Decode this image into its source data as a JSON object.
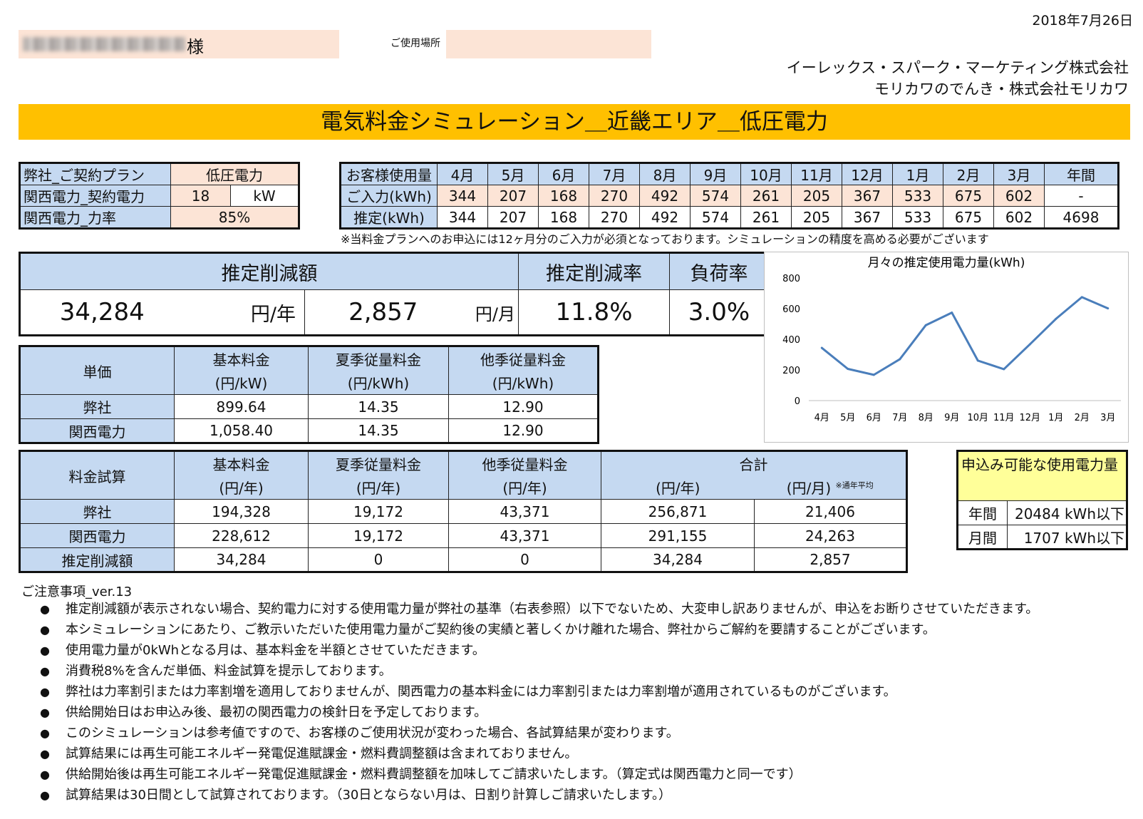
{
  "header": {
    "date": "2018年7月26日",
    "customer_suffix": "様",
    "place_label": "ご使用場所",
    "company_line1": "イーレックス・スパーク・マーケティング株式会社",
    "company_line2": "モリカワのでんき・株式会社モリカワ",
    "title": "電気料金シミュレーション＿近畿エリア＿低圧電力"
  },
  "plan": {
    "row1_label": "弊社_ご契約プラン",
    "row1_value": "低圧電力",
    "row2_label": "関西電力_契約電力",
    "row2_value": "18",
    "row2_unit": "kW",
    "row3_label": "関西電力_力率",
    "row3_value": "85%"
  },
  "usage": {
    "header_label": "お客様使用量",
    "months": [
      "4月",
      "5月",
      "6月",
      "7月",
      "8月",
      "9月",
      "10月",
      "11月",
      "12月",
      "1月",
      "2月",
      "3月"
    ],
    "annual_label": "年間",
    "input_label": "ご入力(kWh)",
    "input": [
      "344",
      "207",
      "168",
      "270",
      "492",
      "574",
      "261",
      "205",
      "367",
      "533",
      "675",
      "602"
    ],
    "input_annual": "-",
    "est_label": "推定(kWh)",
    "est": [
      "344",
      "207",
      "168",
      "270",
      "492",
      "574",
      "261",
      "205",
      "367",
      "533",
      "675",
      "602"
    ],
    "est_annual": "4698",
    "note": "※当料金プランへのお申込には12ヶ月分のご入力が必須となっております。シミュレーションの精度を高める必要がございます"
  },
  "savings": {
    "amount_label": "推定削減額",
    "rate_label": "推定削減率",
    "load_label": "負荷率",
    "yearly": "34,284",
    "yearly_unit": "円/年",
    "monthly": "2,857",
    "monthly_unit": "円/月",
    "rate": "11.8%",
    "load": "3.0%"
  },
  "unit_price": {
    "label": "単価",
    "h1a": "基本料金",
    "h1b": "(円/kW)",
    "h2a": "夏季従量料金",
    "h2b": "(円/kWh)",
    "h3a": "他季従量料金",
    "h3b": "(円/kWh)",
    "row1": {
      "name": "弊社",
      "v1": "899.64",
      "v2": "14.35",
      "v3": "12.90"
    },
    "row2": {
      "name": "関西電力",
      "v1": "1,058.40",
      "v2": "14.35",
      "v3": "12.90"
    }
  },
  "calc": {
    "label": "料金試算",
    "h1a": "基本料金",
    "h1b": "(円/年)",
    "h2a": "夏季従量料金",
    "h2b": "(円/年)",
    "h3a": "他季従量料金",
    "h3b": "(円/年)",
    "total": "合計",
    "total_year": "(円/年)",
    "total_month": "(円/月)",
    "total_note": "※通年平均",
    "row1": {
      "name": "弊社",
      "v1": "194,328",
      "v2": "19,172",
      "v3": "43,371",
      "v4": "256,871",
      "v5": "21,406"
    },
    "row2": {
      "name": "関西電力",
      "v1": "228,612",
      "v2": "19,172",
      "v3": "43,371",
      "v4": "291,155",
      "v5": "24,263"
    },
    "row3": {
      "name": "推定削減額",
      "v1": "34,284",
      "v2": "0",
      "v3": "0",
      "v4": "34,284",
      "v5": "2,857"
    }
  },
  "limit": {
    "title": "申込み可能な使用電力量",
    "row1_label": "年間",
    "row1_value": "20484 kWh以下",
    "row2_label": "月間",
    "row2_value": "1707 kWh以下"
  },
  "chart_data": {
    "type": "line",
    "title": "月々の推定使用電力量(kWh)",
    "categories": [
      "4月",
      "5月",
      "6月",
      "7月",
      "8月",
      "9月",
      "10月",
      "11月",
      "12月",
      "1月",
      "2月",
      "3月"
    ],
    "values": [
      344,
      207,
      168,
      270,
      492,
      574,
      261,
      205,
      367,
      533,
      675,
      602
    ],
    "ylim": [
      0,
      800
    ],
    "yticks": [
      "0",
      "200",
      "400",
      "600",
      "800"
    ],
    "color": "#4a7ebb",
    "grid": false
  },
  "notes": {
    "heading": "ご注意事項_ver.13",
    "bullet": "●",
    "items": [
      "推定削減額が表示されない場合、契約電力に対する使用電力量が弊社の基準（右表参照）以下でないため、大変申し訳ありませんが、申込をお断りさせていただきます。",
      "本シミュレーションにあたり、ご教示いただいた使用電力量がご契約後の実績と著しくかけ離れた場合、弊社からご解約を要請することがございます。",
      "使用電力量が0kWhとなる月は、基本料金を半額とさせていただきます。",
      "消費税8%を含んだ単価、料金試算を提示しております。",
      "弊社は力率割引または力率割増を適用しておりませんが、関西電力の基本料金には力率割引または力率割増が適用されているものがございます。",
      "供給開始日はお申込み後、最初の関西電力の検針日を予定しております。",
      "このシミュレーションは参考値ですので、お客様のご使用状況が変わった場合、各試算結果が変わります。",
      "試算結果には再生可能エネルギー発電促進賦課金・燃料費調整額は含まれておりません。",
      "供給開始後は再生可能エネルギー発電促進賦課金・燃料費調整額を加味してご請求いたします。（算定式は関西電力と同一です）",
      "試算結果は30日間として試算されております。（30日とならない月は、日割り計算しご請求いたします。）"
    ]
  }
}
